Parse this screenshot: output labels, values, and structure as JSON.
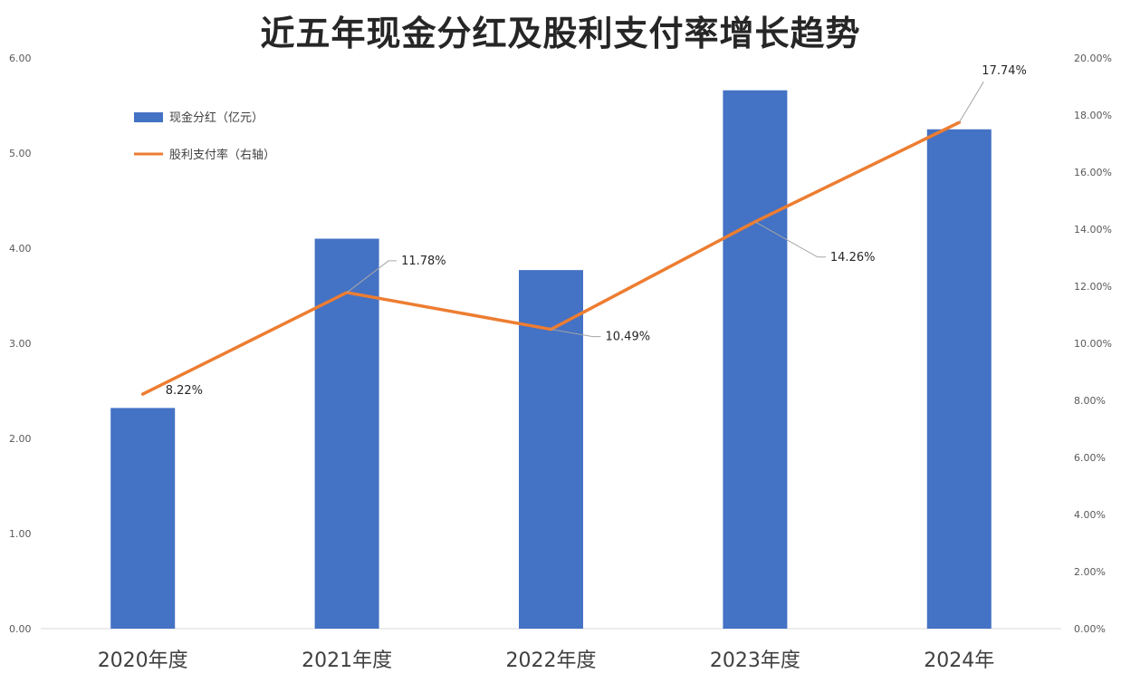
{
  "title": "近五年现金分红及股利支付率增长趋势",
  "chart_data": {
    "type": "bar+line",
    "title": "近五年现金分红及股利支付率增长趋势",
    "categories": [
      "2020年度",
      "2021年度",
      "2022年度",
      "2023年度",
      "2024年"
    ],
    "series": [
      {
        "name": "现金分红（亿元）",
        "type": "bar",
        "axis": "left",
        "color": "#4472C4",
        "values": [
          2.32,
          4.1,
          3.77,
          5.66,
          5.25
        ]
      },
      {
        "name": "股利支付率（右轴）",
        "type": "line",
        "axis": "right",
        "color": "#ED7D31",
        "values": [
          8.22,
          11.78,
          10.49,
          14.26,
          17.74
        ],
        "labels": [
          "8.22%",
          "11.78%",
          "10.49%",
          "14.26%",
          "17.74%"
        ]
      }
    ],
    "y_left": {
      "min": 0,
      "max": 6,
      "ticks": [
        "0.00",
        "1.00",
        "2.00",
        "3.00",
        "4.00",
        "5.00",
        "6.00"
      ]
    },
    "y_right": {
      "min": 0,
      "max": 20,
      "ticks": [
        "0.00%",
        "2.00%",
        "4.00%",
        "6.00%",
        "8.00%",
        "10.00%",
        "12.00%",
        "14.00%",
        "16.00%",
        "18.00%",
        "20.00%"
      ]
    },
    "legend_position": "top-left",
    "grid": false
  }
}
